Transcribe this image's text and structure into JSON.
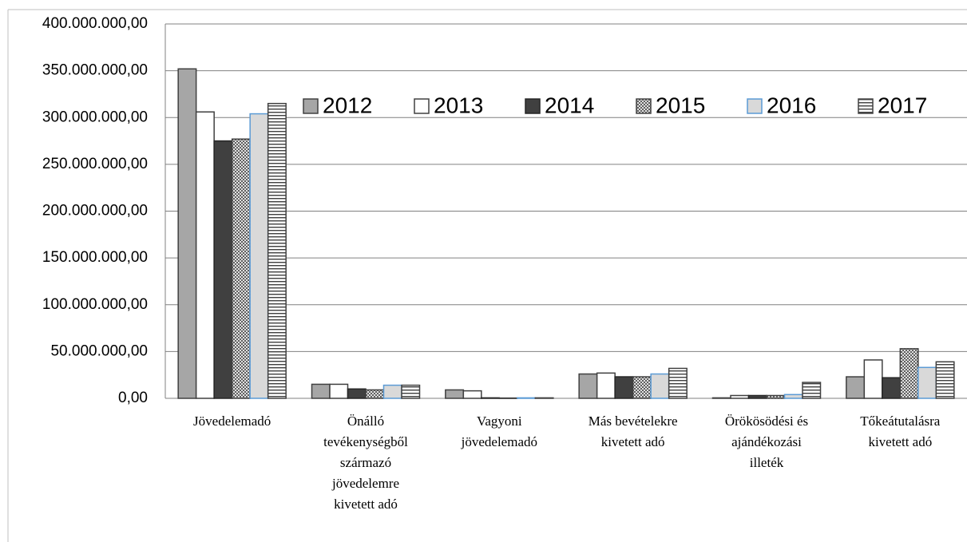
{
  "chart_data": {
    "type": "bar",
    "categories": [
      "Jövedelemadó",
      "Önálló\ntevékenységből\nszármazó\njövedelemre\nkivetett adó",
      "Vagyoni\njövedelemadó",
      "Más bevételekre\nkivetett adó",
      "Örökösödési és\najándékozási\nilleték",
      "Tőkeátutalásra\nkivetett adó"
    ],
    "series": [
      {
        "name": "2012",
        "color": "#a6a6a6",
        "edgecolor": "#404040",
        "values": [
          352000000,
          15000000,
          9000000,
          26000000,
          500000,
          23000000
        ]
      },
      {
        "name": "2013",
        "color": "#ffffff",
        "edgecolor": "#404040",
        "values": [
          306000000,
          15000000,
          8000000,
          27000000,
          3000000,
          41000000
        ]
      },
      {
        "name": "2014",
        "color": "#404040",
        "edgecolor": "#262626",
        "values": [
          275000000,
          10000000,
          500000,
          23000000,
          3000000,
          22000000
        ]
      },
      {
        "name": "2015",
        "color": "#bfbfbf",
        "edgecolor": "#404040",
        "pattern": "dots",
        "values": [
          277000000,
          9000000,
          300000,
          23000000,
          3000000,
          53000000
        ]
      },
      {
        "name": "2016",
        "color": "#d9d9d9",
        "edgecolor": "#5b9bd5",
        "values": [
          304000000,
          14000000,
          500000,
          26000000,
          4000000,
          33000000
        ]
      },
      {
        "name": "2017",
        "color": "#ffffff",
        "edgecolor": "#404040",
        "pattern": "hlines",
        "values": [
          315000000,
          14000000,
          500000,
          32000000,
          17000000,
          39000000
        ]
      }
    ],
    "ylim": [
      0,
      400000000
    ],
    "yticks": [
      {
        "value": 0,
        "label": "0,00"
      },
      {
        "value": 50000000,
        "label": "50.000.000,00"
      },
      {
        "value": 100000000,
        "label": "100.000.000,00"
      },
      {
        "value": 150000000,
        "label": "150.000.000,00"
      },
      {
        "value": 200000000,
        "label": "200.000.000,00"
      },
      {
        "value": 250000000,
        "label": "250.000.000,00"
      },
      {
        "value": 300000000,
        "label": "300.000.000,00"
      },
      {
        "value": 350000000,
        "label": "350.000.000,00"
      },
      {
        "value": 400000000,
        "label": "400.000.000,00"
      }
    ],
    "grid": true,
    "legend": "upper-right"
  }
}
